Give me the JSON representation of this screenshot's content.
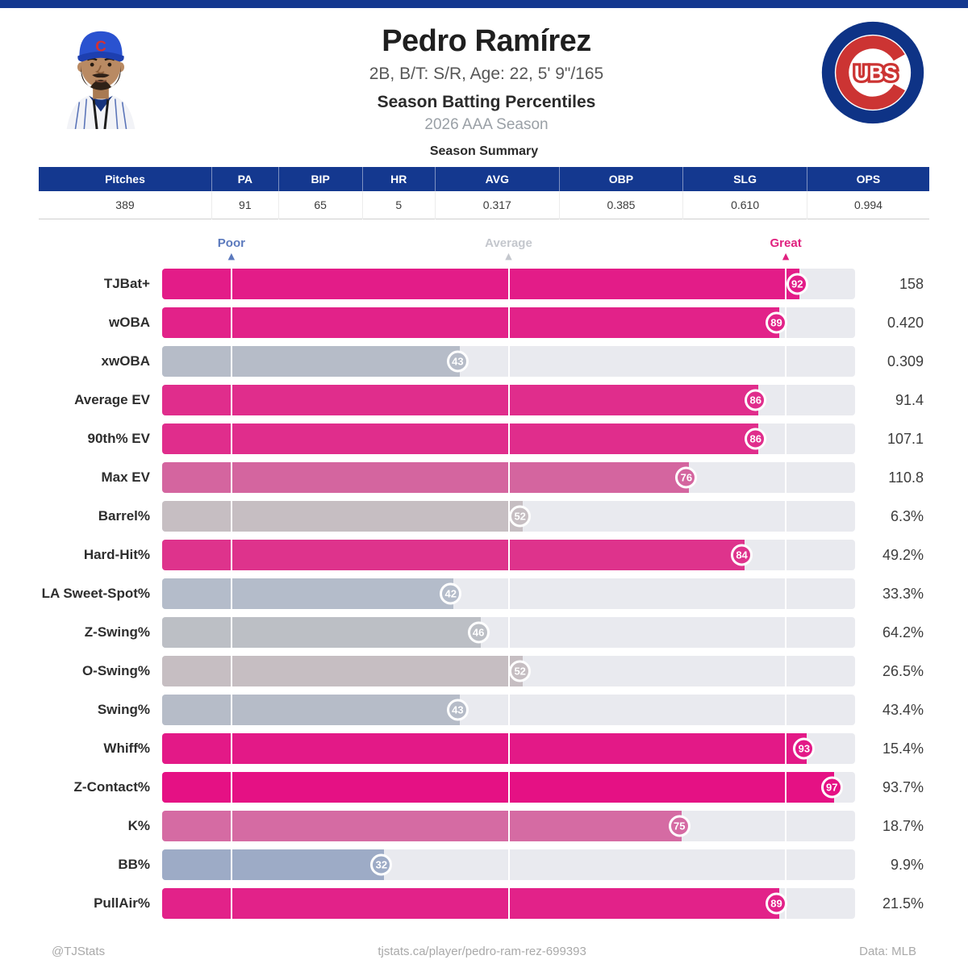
{
  "page": {
    "top_bar_color": "#14388f",
    "background": "#ffffff"
  },
  "header": {
    "player_name": "Pedro Ramírez",
    "bio_line": "2B, B/T: S/R, Age: 22, 5' 9\"/165",
    "chart_title": "Season Batting Percentiles",
    "season_line": "2026 AAA Season",
    "cap_letter": "C",
    "logo_text": "UBS",
    "logo_tm": "™",
    "logo_colors": {
      "blue": "#0e3386",
      "red": "#cc3433",
      "white": "#ffffff"
    }
  },
  "summary_table": {
    "title": "Season Summary",
    "header_bg": "#14388f",
    "header_text_color": "#ffffff",
    "columns": [
      "Pitches",
      "PA",
      "BIP",
      "HR",
      "AVG",
      "OBP",
      "SLG",
      "OPS"
    ],
    "values": [
      "389",
      "91",
      "65",
      "5",
      "0.317",
      "0.385",
      "0.610",
      "0.994"
    ]
  },
  "percentile_chart": {
    "track_color": "#e9eaef",
    "gridlines": [
      10,
      50,
      90
    ],
    "markers": [
      {
        "label": "Poor",
        "position": 10,
        "color": "#5b79bd"
      },
      {
        "label": "Average",
        "position": 50,
        "color": "#c4c7cd"
      },
      {
        "label": "Great",
        "position": 90,
        "color": "#e0217f"
      }
    ]
  },
  "chart_data": {
    "type": "bar",
    "orientation": "horizontal",
    "title": "Season Batting Percentiles",
    "subtitle": "2026 AAA Season",
    "xlim": [
      0,
      100
    ],
    "markers": [
      {
        "label": "Poor",
        "position": 10
      },
      {
        "label": "Average",
        "position": 50
      },
      {
        "label": "Great",
        "position": 90
      }
    ],
    "categories": [
      "TJBat+",
      "wOBA",
      "xwOBA",
      "Average EV",
      "90th% EV",
      "Max EV",
      "Barrel%",
      "Hard-Hit%",
      "LA Sweet-Spot%",
      "Z-Swing%",
      "O-Swing%",
      "Swing%",
      "Whiff%",
      "Z-Contact%",
      "K%",
      "BB%",
      "PullAir%"
    ],
    "percentiles": [
      92,
      89,
      43,
      86,
      86,
      76,
      52,
      84,
      42,
      46,
      52,
      43,
      93,
      97,
      75,
      32,
      89
    ],
    "display_values": [
      "158",
      "0.420",
      "0.309",
      "91.4",
      "107.1",
      "110.8",
      "6.3%",
      "49.2%",
      "33.3%",
      "64.2%",
      "26.5%",
      "43.4%",
      "15.4%",
      "93.7%",
      "18.7%",
      "9.9%",
      "21.5%"
    ],
    "bar_colors": [
      "#e31c88",
      "#e22289",
      "#b6bcc8",
      "#e02d8c",
      "#e02d8c",
      "#d4659f",
      "#c6bec2",
      "#de338c",
      "#b4bcca",
      "#bcbfc5",
      "#c6bec2",
      "#b6bcc8",
      "#e31987",
      "#e51184",
      "#d56ba3",
      "#9dabc6",
      "#e22289"
    ]
  },
  "footer": {
    "left": "@TJStats",
    "center": "tjstats.ca/player/pedro-ram-rez-699393",
    "right": "Data: MLB"
  }
}
